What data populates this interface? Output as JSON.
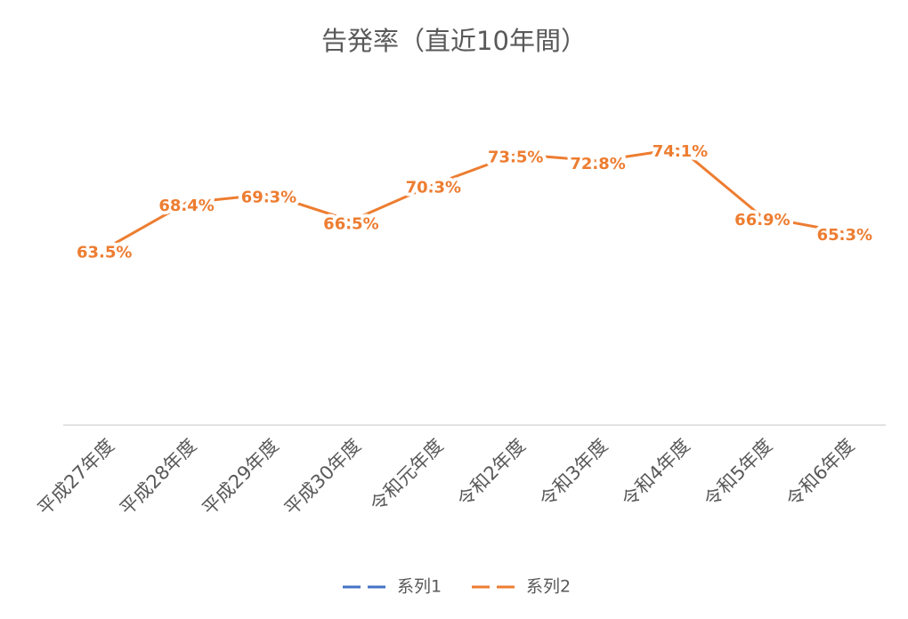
{
  "chart_data": {
    "type": "line",
    "title": "告発率（直近10年間）",
    "categories": [
      "平成27年度",
      "平成28年度",
      "平成29年度",
      "平成30年度",
      "令和元年度",
      "令和2年度",
      "令和3年度",
      "令和4年度",
      "令和5年度",
      "令和6年度"
    ],
    "series": [
      {
        "name": "系列1",
        "color": "#4472C4",
        "values": [
          null,
          null,
          null,
          null,
          null,
          null,
          null,
          null,
          null,
          null
        ]
      },
      {
        "name": "系列2",
        "color": "#ED7D31",
        "values": [
          63.5,
          68.4,
          69.3,
          66.5,
          70.3,
          73.5,
          72.8,
          74.1,
          66.9,
          65.3
        ],
        "value_labels": [
          "63.5%",
          "68.4%",
          "69.3%",
          "66.5%",
          "70.3%",
          "73.5%",
          "72.8%",
          "74.1%",
          "66.9%",
          "65.3%"
        ]
      }
    ],
    "ylim": [
      45,
      80
    ],
    "grid": false,
    "legend": "bottom"
  }
}
